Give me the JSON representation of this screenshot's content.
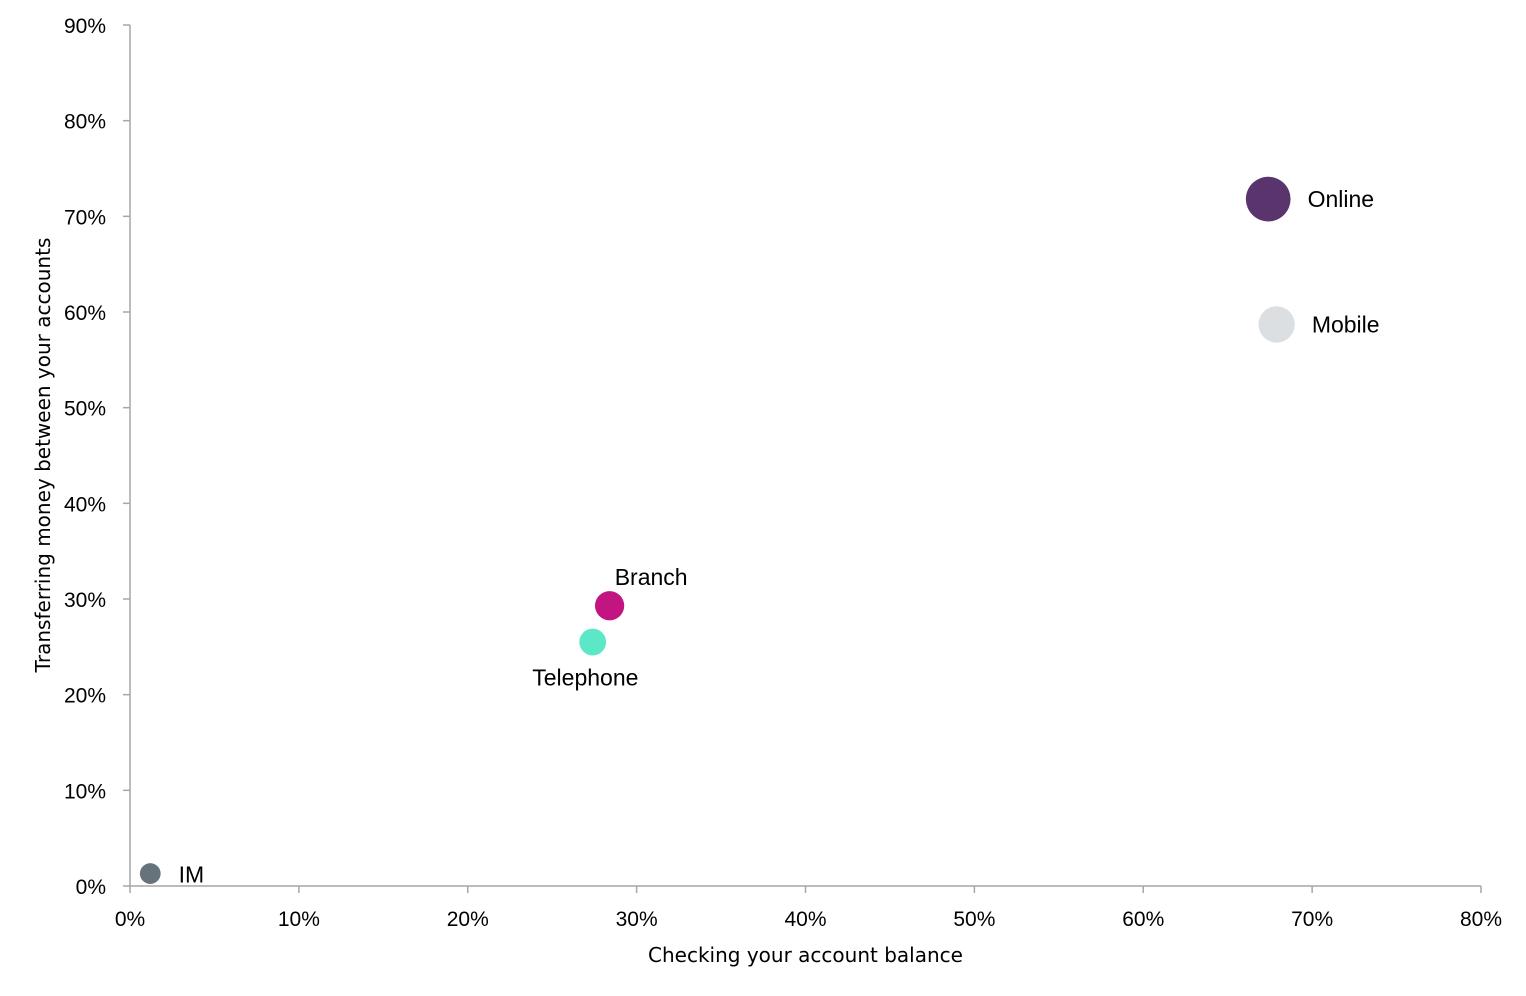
{
  "chart_data": {
    "type": "scatter",
    "title": "",
    "xlabel": "Checking your account balance",
    "ylabel": "Transferring money between your accounts",
    "xlim": [
      0,
      80
    ],
    "ylim": [
      0,
      90
    ],
    "x_ticks": [
      "0%",
      "10%",
      "20%",
      "30%",
      "40%",
      "50%",
      "60%",
      "70%",
      "80%"
    ],
    "y_ticks": [
      "0%",
      "10%",
      "20%",
      "30%",
      "40%",
      "50%",
      "60%",
      "70%",
      "80%",
      "90%"
    ],
    "grid": false,
    "bubble_size_unit": "relative",
    "points": [
      {
        "label": "Online",
        "x": 67.4,
        "y": 71.8,
        "size": 25,
        "color": "#5a356d"
      },
      {
        "label": "Mobile",
        "x": 67.9,
        "y": 58.7,
        "size": 16.5,
        "color": "#dbdfe2"
      },
      {
        "label": "Branch",
        "x": 28.4,
        "y": 29.3,
        "size": 10.7,
        "color": "#c21581"
      },
      {
        "label": "Telephone",
        "x": 27.4,
        "y": 25.5,
        "size": 9,
        "color": "#5ce8c6"
      },
      {
        "label": "IM",
        "x": 1.2,
        "y": 1.3,
        "size": 0.6,
        "color": "#67737b"
      }
    ]
  }
}
